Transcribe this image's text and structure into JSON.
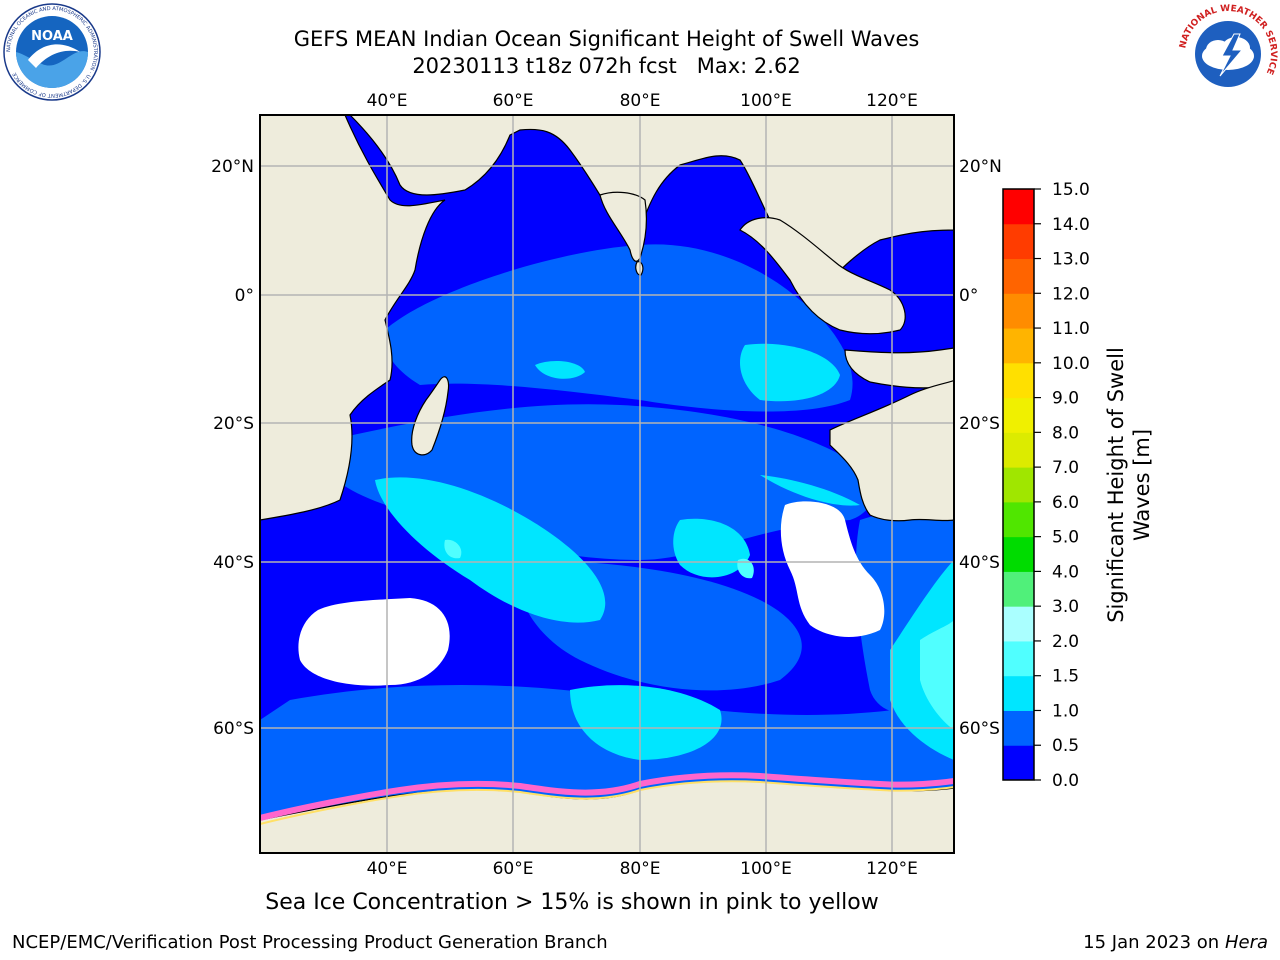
{
  "title": {
    "line1": "GEFS MEAN Indian Ocean Significant Height of Swell Waves",
    "run": "20230113 t18z 072h fcst",
    "max_label": "Max: 2.62"
  },
  "map": {
    "lon_labels": [
      "40°E",
      "60°E",
      "80°E",
      "100°E",
      "120°E"
    ],
    "lat_labels": [
      "20°N",
      "0°",
      "20°S",
      "40°S",
      "60°S"
    ],
    "land_color": "#eeecdc",
    "ocean_color": "#0000ff"
  },
  "colorbar": {
    "label_line1": "Significant Height of Swell",
    "label_line2": "Waves [m]",
    "ticks": [
      "0.0",
      "0.5",
      "1.0",
      "1.5",
      "2.0",
      "3.0",
      "4.0",
      "5.0",
      "6.0",
      "7.0",
      "8.0",
      "9.0",
      "10.0",
      "11.0",
      "12.0",
      "13.0",
      "14.0",
      "15.0"
    ],
    "colors": [
      "#0000ff",
      "#0064ff",
      "#00e6ff",
      "#50ffff",
      "#aaffff",
      "#50f07a",
      "#00dc00",
      "#50e600",
      "#a0e600",
      "#dceb00",
      "#f0f000",
      "#ffe000",
      "#ffb400",
      "#ff8c00",
      "#ff6400",
      "#ff3c00",
      "#ff0000"
    ]
  },
  "note": "Sea Ice Concentration > 15% is shown in pink to yellow",
  "footer": {
    "left": "NCEP/EMC/Verification Post Processing Product Generation Branch",
    "date": "15 Jan 2023 on",
    "host": "Hera"
  },
  "logos": {
    "noaa": "NOAA",
    "noaa_ring": "NATIONAL OCEANIC AND ATMOSPHERIC ADMINISTRATION · U.S. DEPARTMENT OF COMMERCE",
    "nws_ring": "NATIONAL WEATHER SERVICE"
  }
}
